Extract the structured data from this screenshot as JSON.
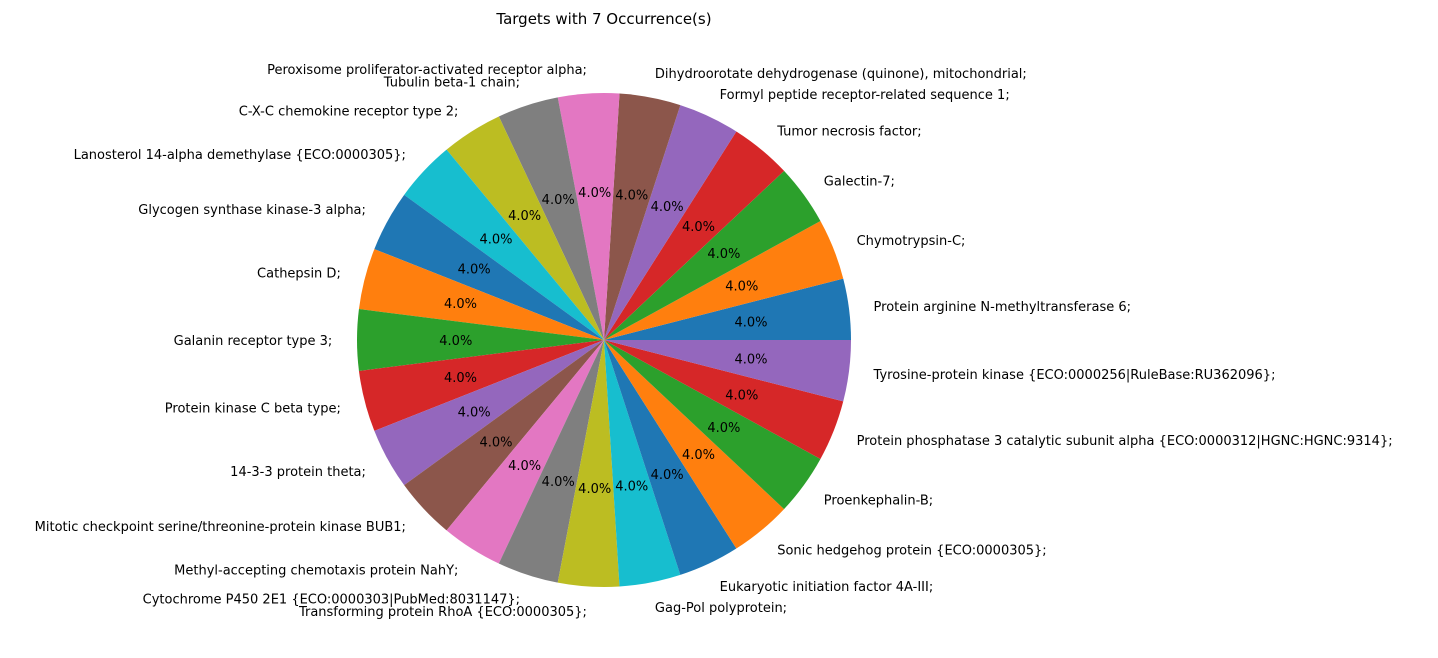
{
  "chart_data": {
    "type": "pie",
    "title": "Targets with 7 Occurrence(s)",
    "categories": [
      "Protein arginine N-methyltransferase 6;",
      "Chymotrypsin-C;",
      "Galectin-7;",
      "Tumor necrosis factor;",
      "Formyl peptide receptor-related sequence 1;",
      "Dihydroorotate dehydrogenase (quinone), mitochondrial;",
      "Peroxisome proliferator-activated receptor alpha;",
      "Tubulin beta-1 chain;",
      "C-X-C chemokine receptor type 2;",
      "Lanosterol 14-alpha demethylase {ECO:0000305};",
      "Glycogen synthase kinase-3 alpha;",
      "Cathepsin D;",
      "Galanin receptor type 3;",
      "Protein kinase C beta type;",
      "14-3-3 protein theta;",
      "Mitotic checkpoint serine/threonine-protein kinase BUB1;",
      "Methyl-accepting chemotaxis protein NahY;",
      "Cytochrome P450 2E1 {ECO:0000303|PubMed:8031147};",
      "Transforming protein RhoA {ECO:0000305};",
      "Gag-Pol polyprotein;",
      "Eukaryotic initiation factor 4A-III;",
      "Sonic hedgehog protein {ECO:0000305};",
      "Proenkephalin-B;",
      "Protein phosphatase 3 catalytic subunit alpha {ECO:0000312|HGNC:HGNC:9314};",
      "Tyrosine-protein kinase {ECO:0000256|RuleBase:RU362096};"
    ],
    "values": [
      7,
      7,
      7,
      7,
      7,
      7,
      7,
      7,
      7,
      7,
      7,
      7,
      7,
      7,
      7,
      7,
      7,
      7,
      7,
      7,
      7,
      7,
      7,
      7,
      7
    ],
    "percent_labels": [
      "4.0%",
      "4.0%",
      "4.0%",
      "4.0%",
      "4.0%",
      "4.0%",
      "4.0%",
      "4.0%",
      "4.0%",
      "4.0%",
      "4.0%",
      "4.0%",
      "4.0%",
      "4.0%",
      "4.0%",
      "4.0%",
      "4.0%",
      "4.0%",
      "4.0%",
      "4.0%",
      "4.0%",
      "4.0%",
      "4.0%",
      "4.0%",
      "4.0%"
    ],
    "colors": [
      "#1f77b4",
      "#ff7f0e",
      "#2ca02c",
      "#d62728",
      "#9467bd",
      "#8c564b",
      "#e377c2",
      "#7f7f7f",
      "#bcbd22",
      "#17becf"
    ],
    "start_angle_deg": 0,
    "direction": "counterclockwise"
  }
}
